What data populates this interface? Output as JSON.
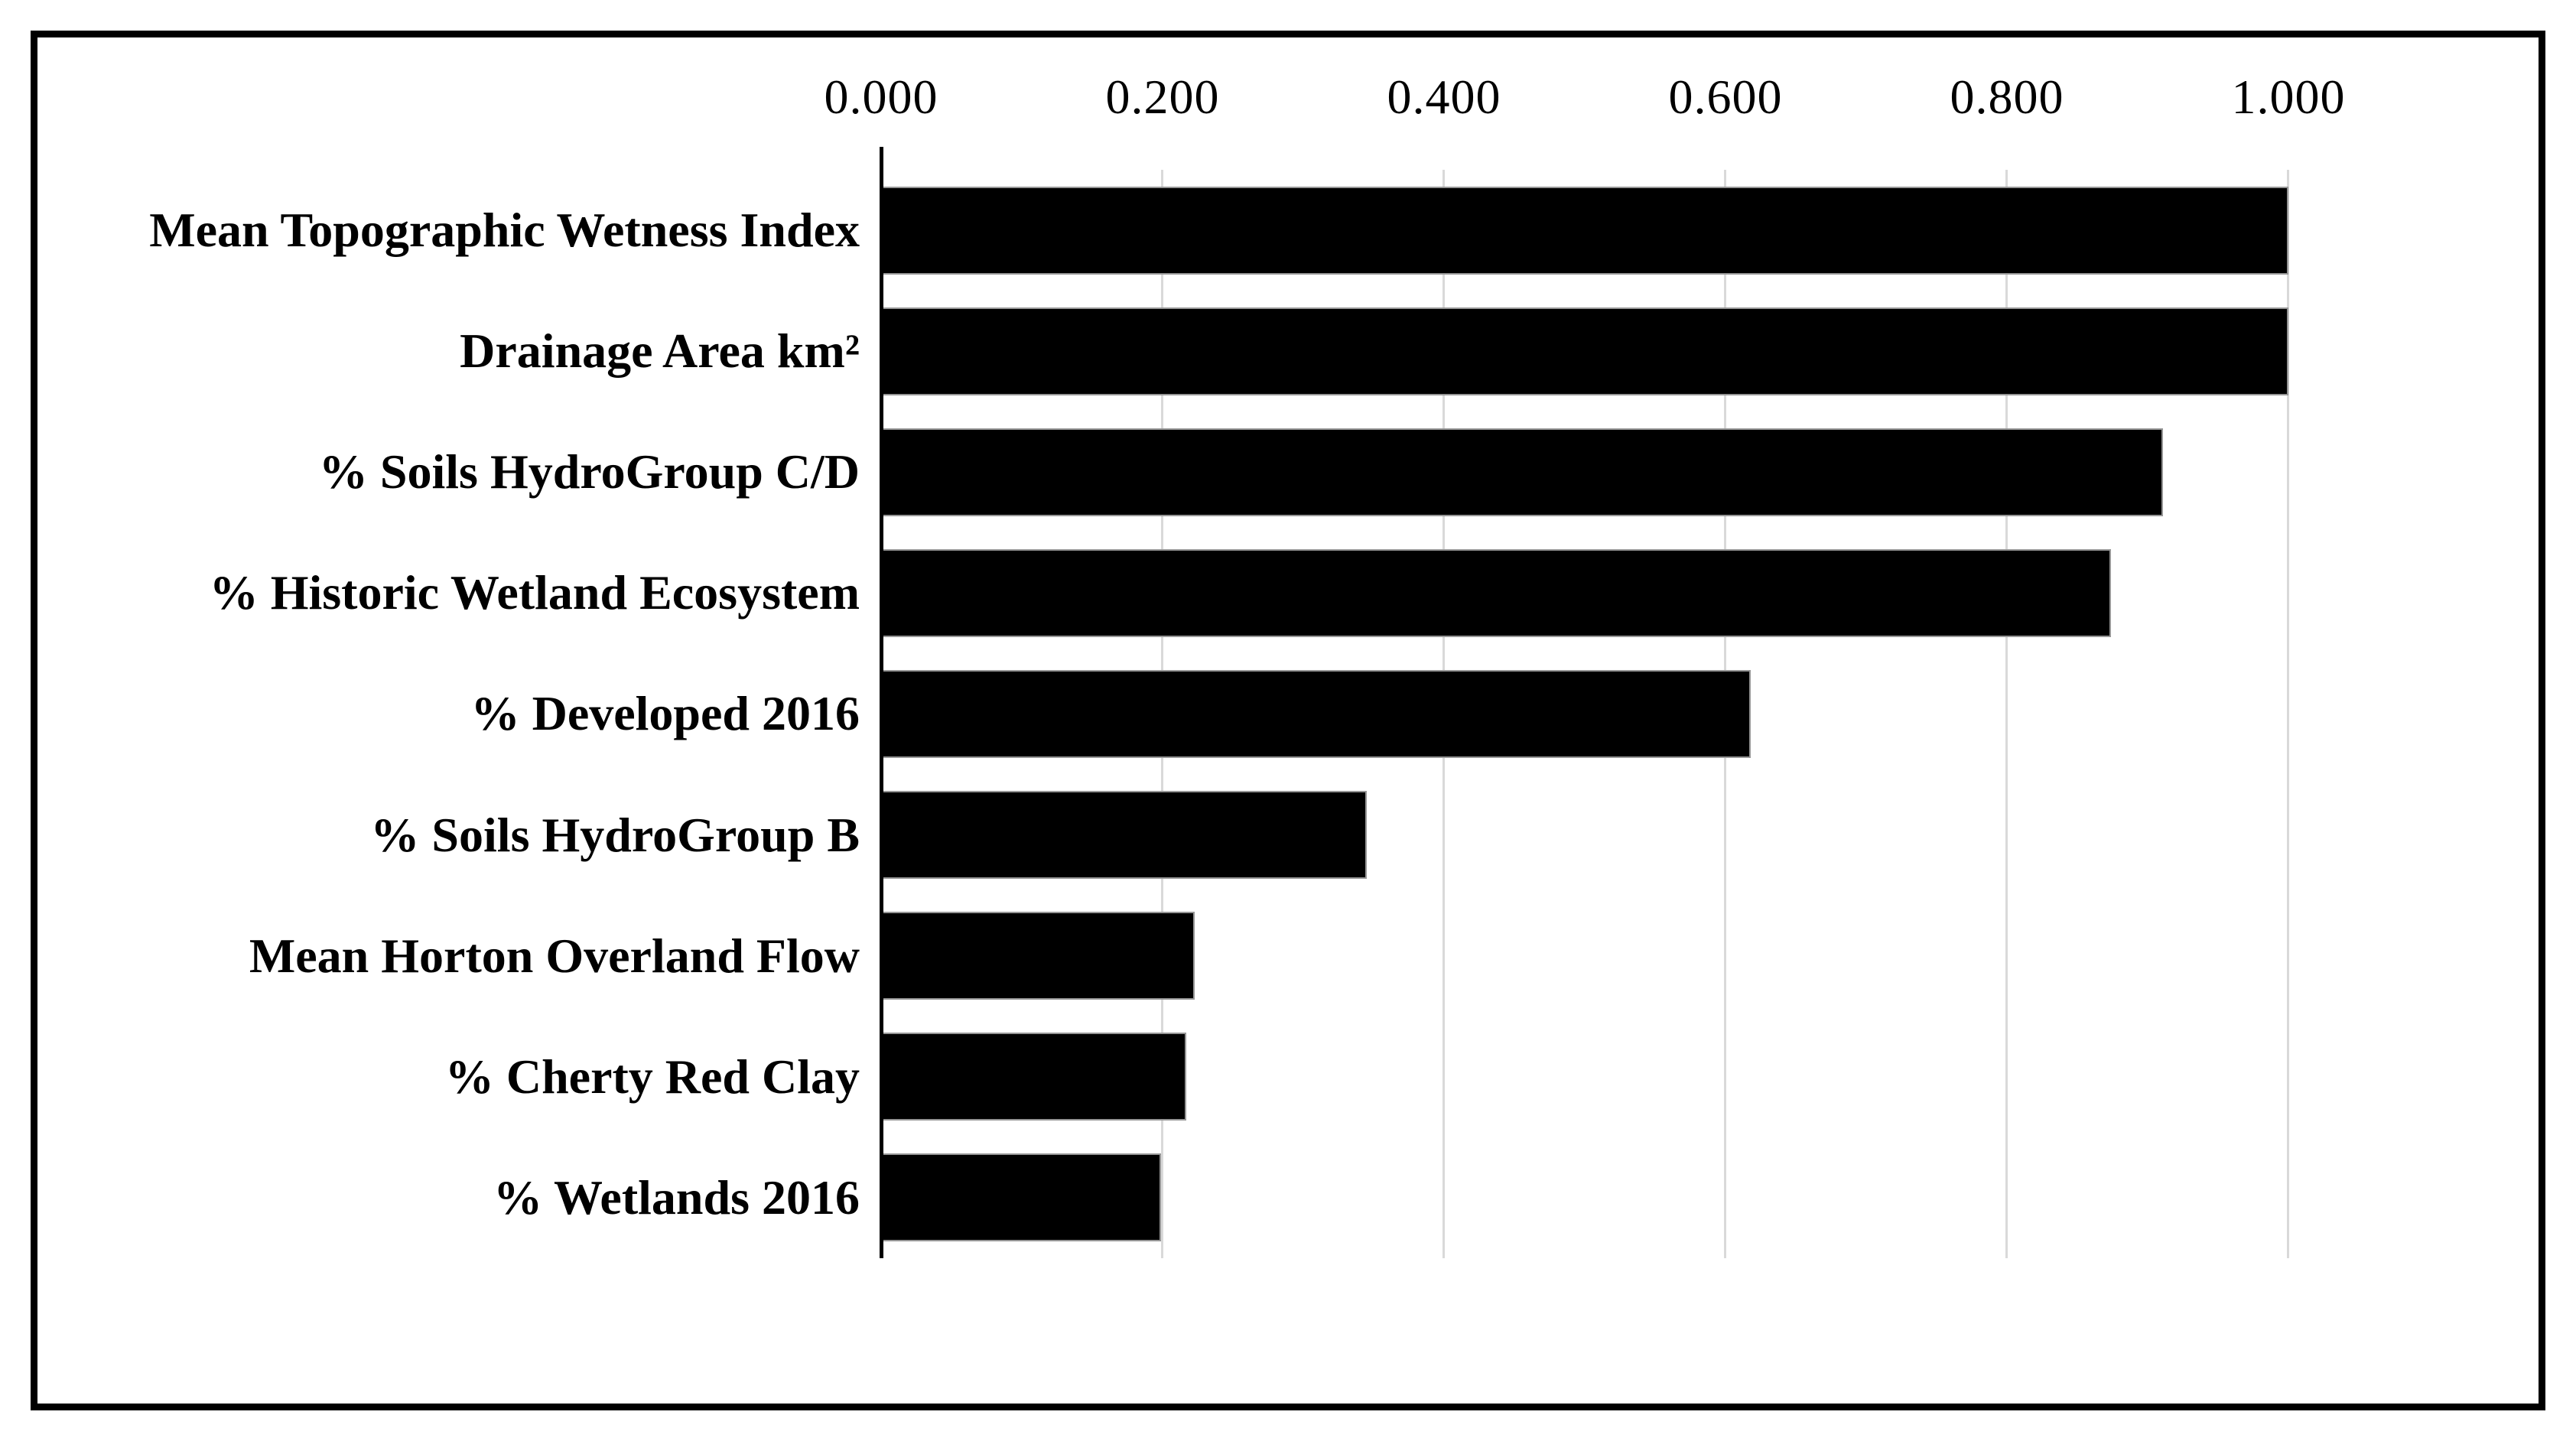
{
  "chart_data": {
    "type": "bar",
    "orientation": "horizontal",
    "title": "",
    "xlabel": "",
    "ylabel": "",
    "categories": [
      "Mean Topographic Wetness Index",
      "Drainage Area km²",
      "% Soils HydroGroup C/D",
      "% Historic Wetland Ecosystem",
      "% Developed 2016",
      "% Soils HydroGroup B",
      "Mean Horton Overland Flow",
      "% Cherty Red Clay",
      "% Wetlands 2016"
    ],
    "values": [
      1.0,
      1.0,
      0.911,
      0.874,
      0.618,
      0.345,
      0.223,
      0.217,
      0.199
    ],
    "x_axis": {
      "position": "top",
      "range": [
        0.0,
        1.0
      ],
      "major_unit": 0.2,
      "tick_labels": [
        "0.000",
        "0.200",
        "0.400",
        "0.600",
        "0.800",
        "1.000"
      ]
    },
    "grid": true,
    "legend": false,
    "colors": {
      "bar_fill": "#000000",
      "bar_outline": "#969696",
      "gridline": "#d9d9d9",
      "axis_line": "#000000",
      "frame_border": "#000000",
      "background": "#ffffff",
      "text": "#000000"
    }
  }
}
